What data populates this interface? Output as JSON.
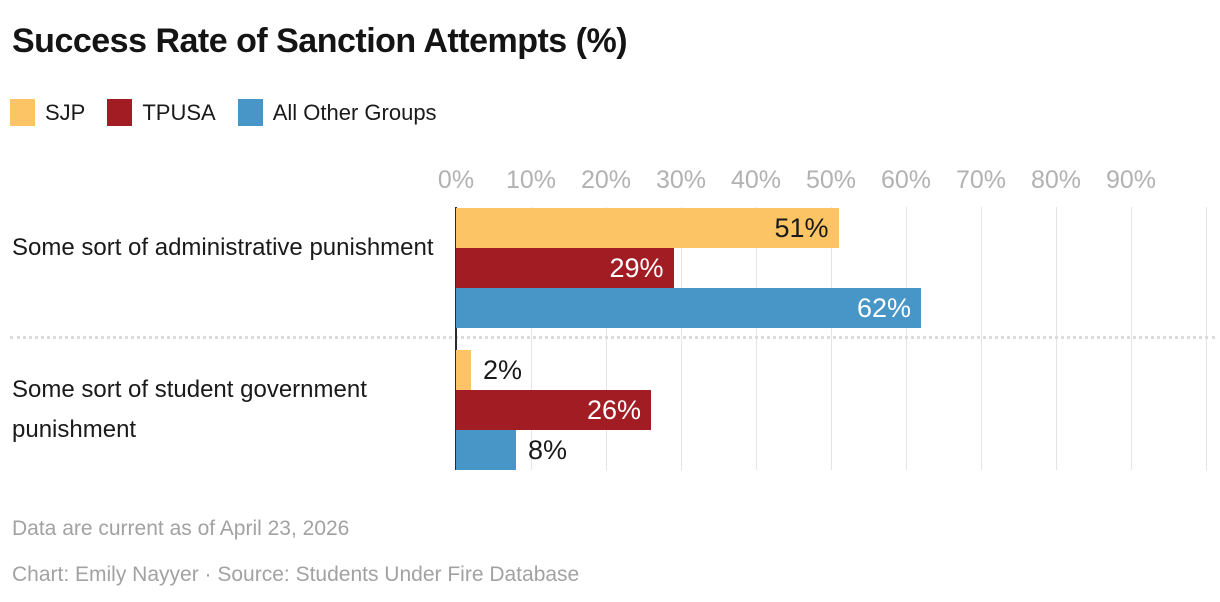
{
  "title": "Success Rate of Sanction Attempts (%)",
  "legend": [
    {
      "label": "SJP",
      "color": "#FCC464"
    },
    {
      "label": "TPUSA",
      "color": "#A11D23"
    },
    {
      "label": "All Other Groups",
      "color": "#4896C7"
    }
  ],
  "chart_data": {
    "type": "bar",
    "orientation": "horizontal",
    "title": "Success Rate of Sanction Attempts (%)",
    "categories": [
      "Some sort of administrative punishment",
      "Some sort of student government punishment"
    ],
    "series": [
      {
        "name": "SJP",
        "color": "#FCC464",
        "values": [
          51,
          2
        ],
        "labels": [
          "51%",
          "2%"
        ],
        "label_styles": [
          {
            "placement": "inside",
            "color": "#1a1a1a"
          },
          {
            "placement": "outside",
            "color": "#1a1a1a"
          }
        ]
      },
      {
        "name": "TPUSA",
        "color": "#A11D23",
        "values": [
          29,
          26
        ],
        "labels": [
          "29%",
          "26%"
        ],
        "label_styles": [
          {
            "placement": "inside",
            "color": "#ffffff"
          },
          {
            "placement": "inside",
            "color": "#ffffff"
          }
        ]
      },
      {
        "name": "All Other Groups",
        "color": "#4896C7",
        "values": [
          62,
          8
        ],
        "labels": [
          "62%",
          "8%"
        ],
        "label_styles": [
          {
            "placement": "inside",
            "color": "#ffffff"
          },
          {
            "placement": "outside",
            "color": "#1a1a1a"
          }
        ]
      }
    ],
    "x_ticks": [
      "0%",
      "10%",
      "20%",
      "30%",
      "40%",
      "50%",
      "60%",
      "70%",
      "80%",
      "90%"
    ],
    "xlim": [
      0,
      100
    ],
    "grid": true,
    "legend_position": "top",
    "axis_color": "#2b2b2b",
    "gridline_color": "#e4e4e4",
    "tick_label_color": "#b2b2b2"
  },
  "footer": {
    "note": "Data are current as of April 23, 2026",
    "byline": "Chart: Emily Nayyer · Source: Students Under Fire Database"
  }
}
